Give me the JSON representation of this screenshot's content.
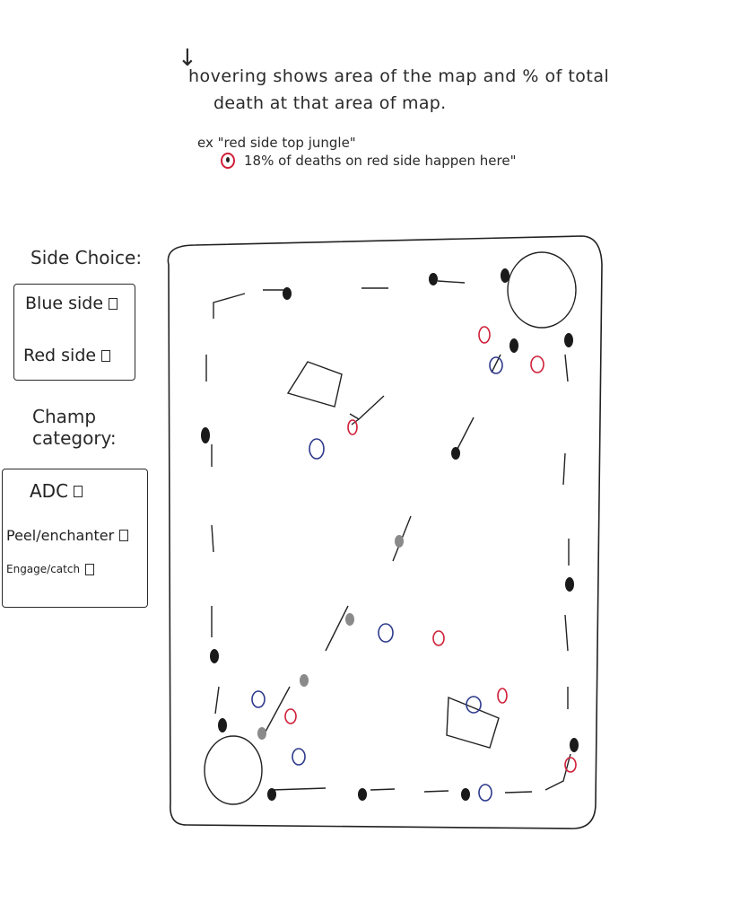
{
  "annotation": {
    "arrow": "↓",
    "line1": "hovering shows area of the map and % of total",
    "line2": "death at that area of map.",
    "example_label": "ex \"red side top jungle\"",
    "example_detail": "18% of deaths on red side happen here\""
  },
  "side_choice": {
    "title": "Side Choice:",
    "options": [
      {
        "label": "Blue side"
      },
      {
        "label": "Red side"
      }
    ]
  },
  "champ_category": {
    "title_line1": "Champ",
    "title_line2": "category:",
    "options": [
      {
        "label": "ADC"
      },
      {
        "label": "Peel/enchanter"
      },
      {
        "label": "Engage/catch"
      }
    ]
  },
  "colors": {
    "ink": "#222222",
    "blue_marker": "#2e3a8c",
    "red_marker": "#d0203a",
    "gray_marker": "#8a8a8a"
  }
}
